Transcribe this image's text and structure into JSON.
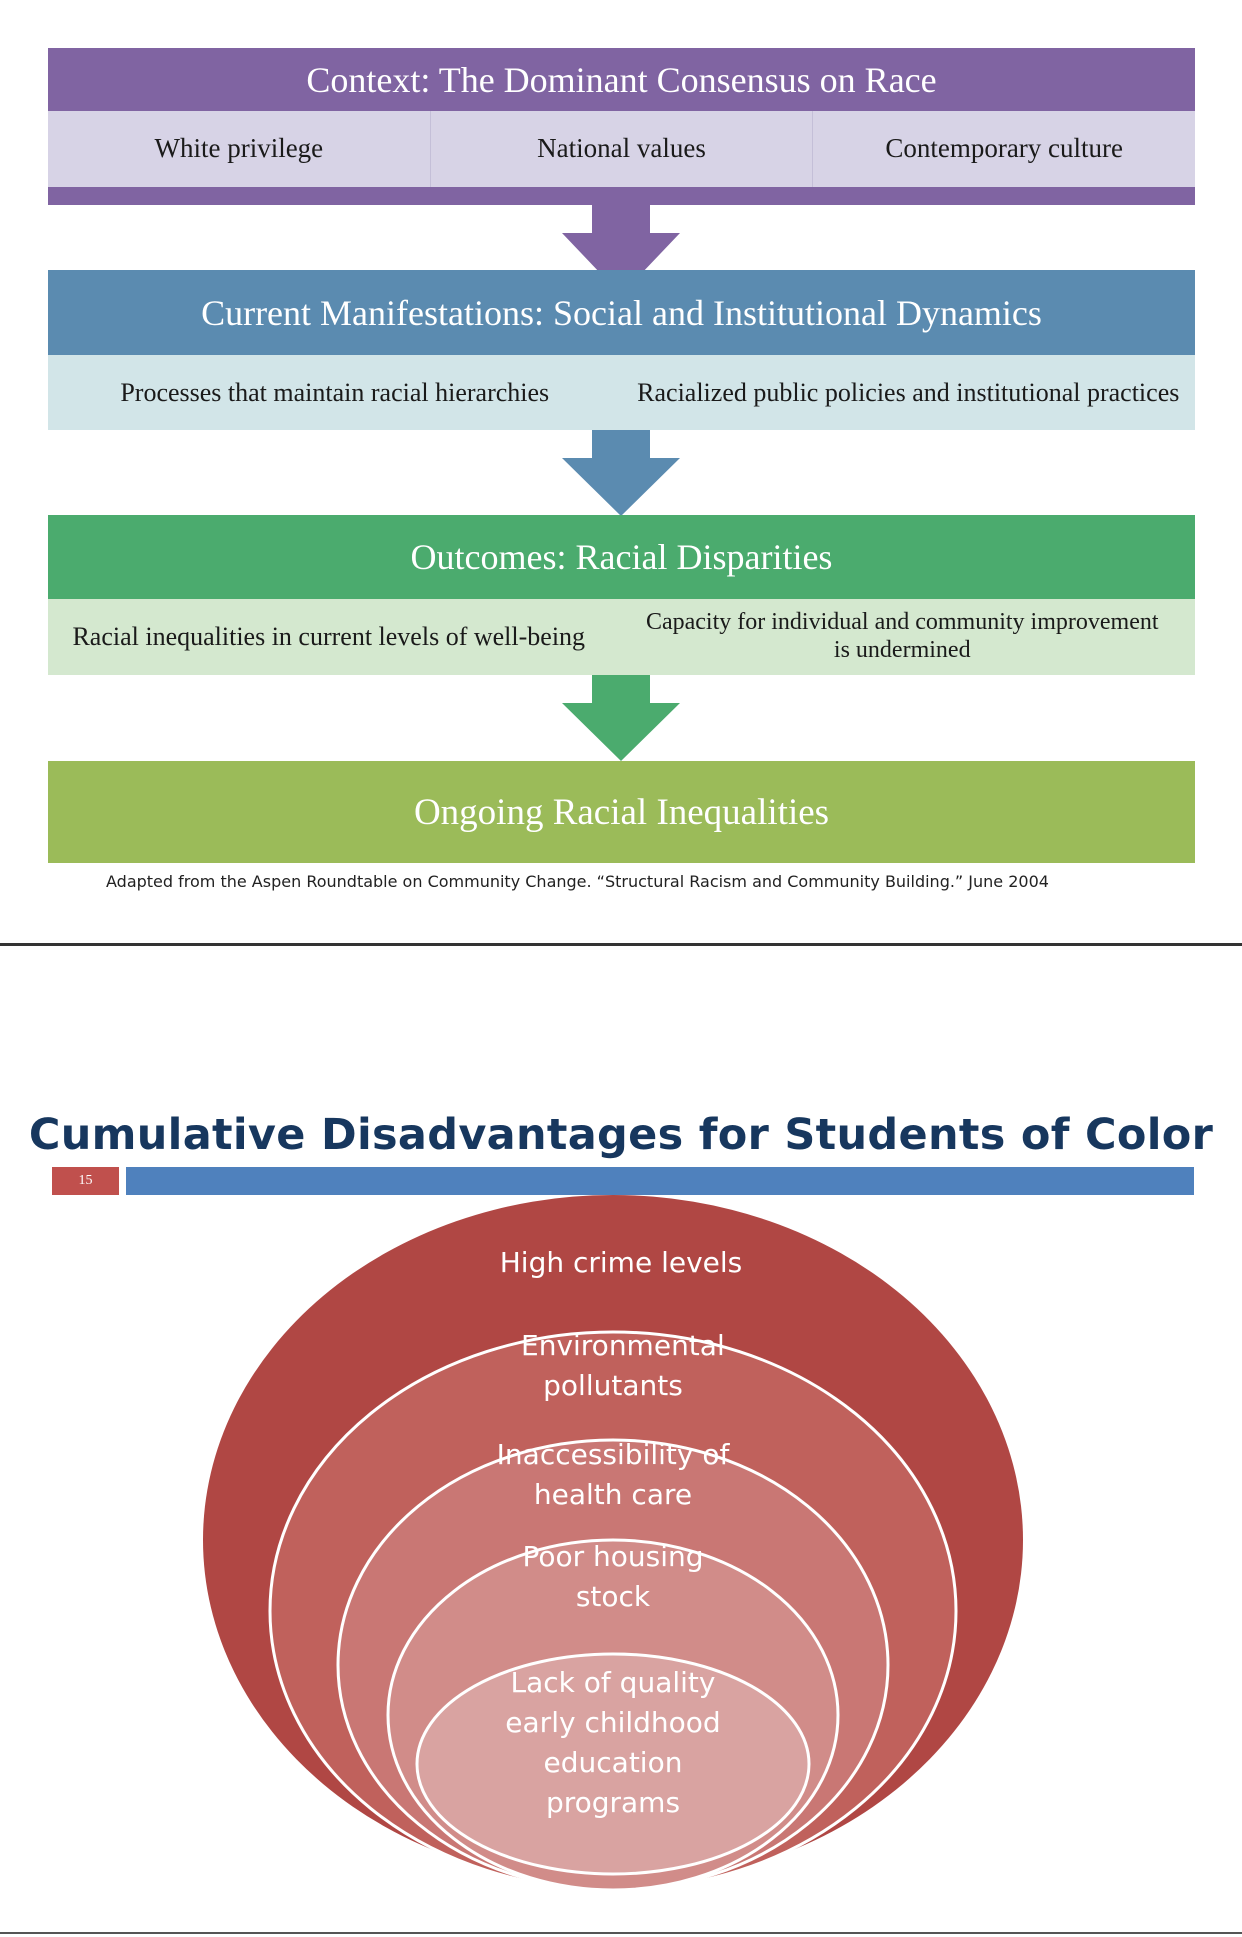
{
  "slide1": {
    "context": {
      "title": "Context: The Dominant Consensus on Race",
      "items": [
        "White privilege",
        "National values",
        "Contemporary culture"
      ],
      "color": "#8064a2",
      "sub_color": "#d7d3e6"
    },
    "manifestations": {
      "title": "Current Manifestations: Social and Institutional Dynamics",
      "items": [
        "Processes that maintain racial hierarchies",
        "Racialized public policies and institutional practices"
      ],
      "color": "#5b8bb0",
      "sub_color": "#d2e5e8"
    },
    "outcomes": {
      "title": "Outcomes: Racial Disparities",
      "items": [
        "Racial inequalities in current levels of well-being",
        "Capacity for individual and community improvement is undermined"
      ],
      "color": "#4bab6e",
      "sub_color": "#d4e8cf"
    },
    "final": {
      "title": "Ongoing Racial Inequalities",
      "color": "#9bbb59"
    },
    "source": "Adapted from the Aspen Roundtable on Community Change. “Structural Racism and Community Building.”  June 2004"
  },
  "slide2": {
    "title": "Cumulative Disadvantages for Students of Color",
    "slide_number": "15",
    "rings": [
      {
        "label": "High crime levels",
        "color": "#b04744"
      },
      {
        "label": "Environmental pollutants",
        "color": "#c0615c"
      },
      {
        "label": "Inaccessibility of health care",
        "color": "#c97774"
      },
      {
        "label": "Poor housing stock",
        "color": "#d18c89"
      },
      {
        "label": "Lack of quality early childhood education programs",
        "color": "#d9a3a1"
      }
    ]
  }
}
